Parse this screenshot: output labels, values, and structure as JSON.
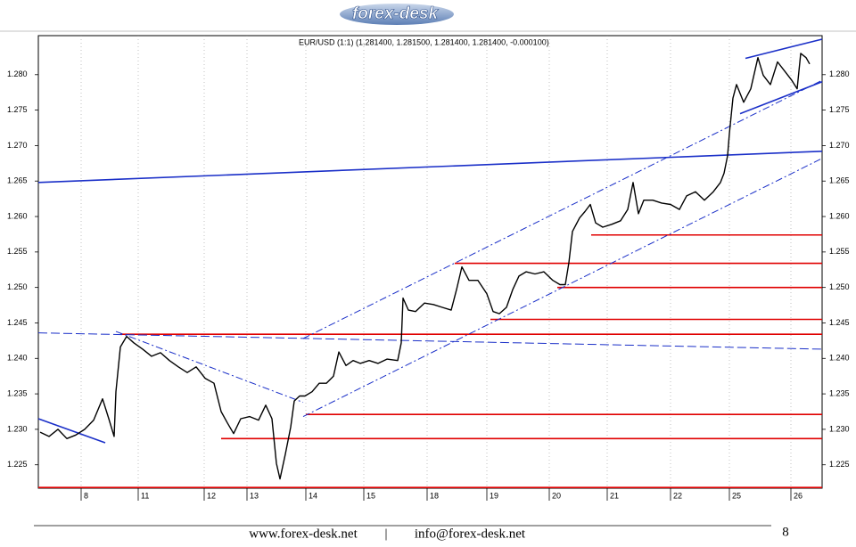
{
  "header": {
    "logo": "forex-desk"
  },
  "chart_data": {
    "type": "line",
    "title": "EUR/USD (1:1) (1.281400, 1.281500, 1.281400, 1.281400, -0.000100)",
    "x": [
      2,
      12,
      22,
      32,
      42,
      52,
      62,
      72,
      79,
      85,
      87,
      92,
      99,
      107,
      117,
      127,
      137,
      147,
      157,
      167,
      177,
      187,
      197,
      205,
      212,
      219,
      227,
      237,
      247,
      255,
      262,
      267,
      271,
      277,
      283,
      287,
      293,
      299,
      307,
      315,
      323,
      331,
      337,
      345,
      353,
      361,
      371,
      381,
      391,
      403,
      407,
      409,
      415,
      423,
      433,
      443,
      453,
      463,
      469,
      475,
      483,
      493,
      503,
      510,
      517,
      525,
      532,
      539,
      547,
      557,
      567,
      577,
      585,
      591,
      595,
      599,
      607,
      613,
      619,
      625,
      633,
      643,
      653,
      661,
      667,
      673,
      679,
      689,
      699,
      709,
      719,
      727,
      737,
      747,
      757,
      765,
      769,
      773,
      775,
      779,
      783,
      791,
      799,
      807,
      813,
      821,
      829,
      837,
      845,
      851,
      855,
      861,
      865
    ],
    "values": [
      1.2296,
      1.229,
      1.23,
      1.2287,
      1.2292,
      1.23,
      1.2313,
      1.2343,
      1.2315,
      1.229,
      1.2353,
      1.2416,
      1.2431,
      1.2422,
      1.2413,
      1.2403,
      1.2408,
      1.2397,
      1.2388,
      1.238,
      1.2388,
      1.2372,
      1.2365,
      1.2325,
      1.2309,
      1.2294,
      1.2315,
      1.2318,
      1.2313,
      1.2334,
      1.2315,
      1.2252,
      1.223,
      1.2265,
      1.2303,
      1.234,
      1.2347,
      1.2347,
      1.2353,
      1.2365,
      1.2365,
      1.2375,
      1.2409,
      1.239,
      1.2397,
      1.2393,
      1.2397,
      1.2393,
      1.2399,
      1.2397,
      1.2422,
      1.2485,
      1.2468,
      1.2466,
      1.2478,
      1.2476,
      1.2472,
      1.2468,
      1.2497,
      1.2529,
      1.251,
      1.251,
      1.2491,
      1.2466,
      1.2463,
      1.2472,
      1.2497,
      1.2516,
      1.2522,
      1.2519,
      1.2522,
      1.251,
      1.2504,
      1.2504,
      1.2535,
      1.2579,
      1.2598,
      1.2607,
      1.2617,
      1.2591,
      1.2585,
      1.2589,
      1.2594,
      1.261,
      1.2648,
      1.2604,
      1.2623,
      1.2623,
      1.2619,
      1.2617,
      1.261,
      1.2629,
      1.2635,
      1.2623,
      1.2635,
      1.2648,
      1.2661,
      1.2686,
      1.2717,
      1.2767,
      1.2786,
      1.2761,
      1.278,
      1.2824,
      1.2799,
      1.2786,
      1.2818,
      1.2805,
      1.2792,
      1.278,
      1.283,
      1.2824,
      1.2815
    ],
    "color": "#000000",
    "xlim": [
      0,
      879
    ],
    "ylim": [
      1.2217,
      1.2855
    ],
    "xticks": [
      {
        "value": 48,
        "label": "8"
      },
      {
        "value": 112,
        "label": "11"
      },
      {
        "value": 186,
        "label": "12"
      },
      {
        "value": 234,
        "label": "13"
      },
      {
        "value": 300,
        "label": "14"
      },
      {
        "value": 365,
        "label": "15"
      },
      {
        "value": 436,
        "label": "18"
      },
      {
        "value": 503,
        "label": "19"
      },
      {
        "value": 573,
        "label": "20"
      },
      {
        "value": 638,
        "label": "21"
      },
      {
        "value": 709,
        "label": "22"
      },
      {
        "value": 775,
        "label": "25"
      },
      {
        "value": 844,
        "label": "26"
      }
    ],
    "yticks": [
      1.225,
      {
        "value": 1.23,
        "label": "1.230"
      },
      1.235,
      {
        "value": 1.24,
        "label": "1.240"
      },
      1.245,
      {
        "value": 1.25,
        "label": "1.250"
      },
      1.255,
      {
        "value": 1.26,
        "label": "1.260"
      },
      1.265,
      {
        "value": 1.27,
        "label": "1.270"
      },
      1.275,
      {
        "value": 1.28,
        "label": "1.280"
      }
    ],
    "grid": "x",
    "lines": [
      {
        "x": [
          92,
          879
        ],
        "y": [
          1.2434,
          1.2434
        ],
        "color": "#e00000",
        "style": "solid"
      },
      {
        "x": [
          300,
          879
        ],
        "y": [
          1.2321,
          1.2321
        ],
        "color": "#e00000",
        "style": "solid"
      },
      {
        "x": [
          205,
          879
        ],
        "y": [
          1.2287,
          1.2287
        ],
        "color": "#e00000",
        "style": "solid"
      },
      {
        "x": [
          0,
          879
        ],
        "y": [
          1.2218,
          1.2218
        ],
        "color": "#e00000",
        "style": "solid"
      },
      {
        "x": [
          507,
          879
        ],
        "y": [
          1.2455,
          1.2455
        ],
        "color": "#e00000",
        "style": "solid"
      },
      {
        "x": [
          582,
          879
        ],
        "y": [
          1.25,
          1.25
        ],
        "color": "#e00000",
        "style": "solid"
      },
      {
        "x": [
          467,
          879
        ],
        "y": [
          1.2534,
          1.2534
        ],
        "color": "#e00000",
        "style": "solid"
      },
      {
        "x": [
          620,
          879
        ],
        "y": [
          1.2574,
          1.2574
        ],
        "color": "#e00000",
        "style": "solid"
      },
      {
        "x": [
          0,
          879
        ],
        "y": [
          1.2648,
          1.2692
        ],
        "color": "#1a2fc8",
        "style": "solid"
      },
      {
        "x": [
          0,
          879
        ],
        "y": [
          1.2436,
          1.2413
        ],
        "color": "#1a2fc8",
        "style": "dashed"
      },
      {
        "x": [
          297,
          879
        ],
        "y": [
          1.2428,
          1.2792
        ],
        "color": "#1a2fc8",
        "style": "dashdot"
      },
      {
        "x": [
          297,
          879
        ],
        "y": [
          1.2318,
          1.2682
        ],
        "color": "#1a2fc8",
        "style": "dashdot"
      },
      {
        "x": [
          87,
          297
        ],
        "y": [
          1.2438,
          1.2338
        ],
        "color": "#1a2fc8",
        "style": "dashdot"
      },
      {
        "x": [
          0,
          75
        ],
        "y": [
          1.2315,
          1.2281
        ],
        "color": "#1a2fc8",
        "style": "solid"
      },
      {
        "x": [
          793,
          879
        ],
        "y": [
          1.2823,
          1.285
        ],
        "color": "#1a2fc8",
        "style": "solid"
      },
      {
        "x": [
          787,
          879
        ],
        "y": [
          1.2745,
          1.279
        ],
        "color": "#1a2fc8",
        "style": "solid"
      }
    ]
  },
  "footer": {
    "website": "www.forex-desk.net",
    "separator": "|",
    "email": "info@forex-desk.net",
    "page": "8"
  }
}
